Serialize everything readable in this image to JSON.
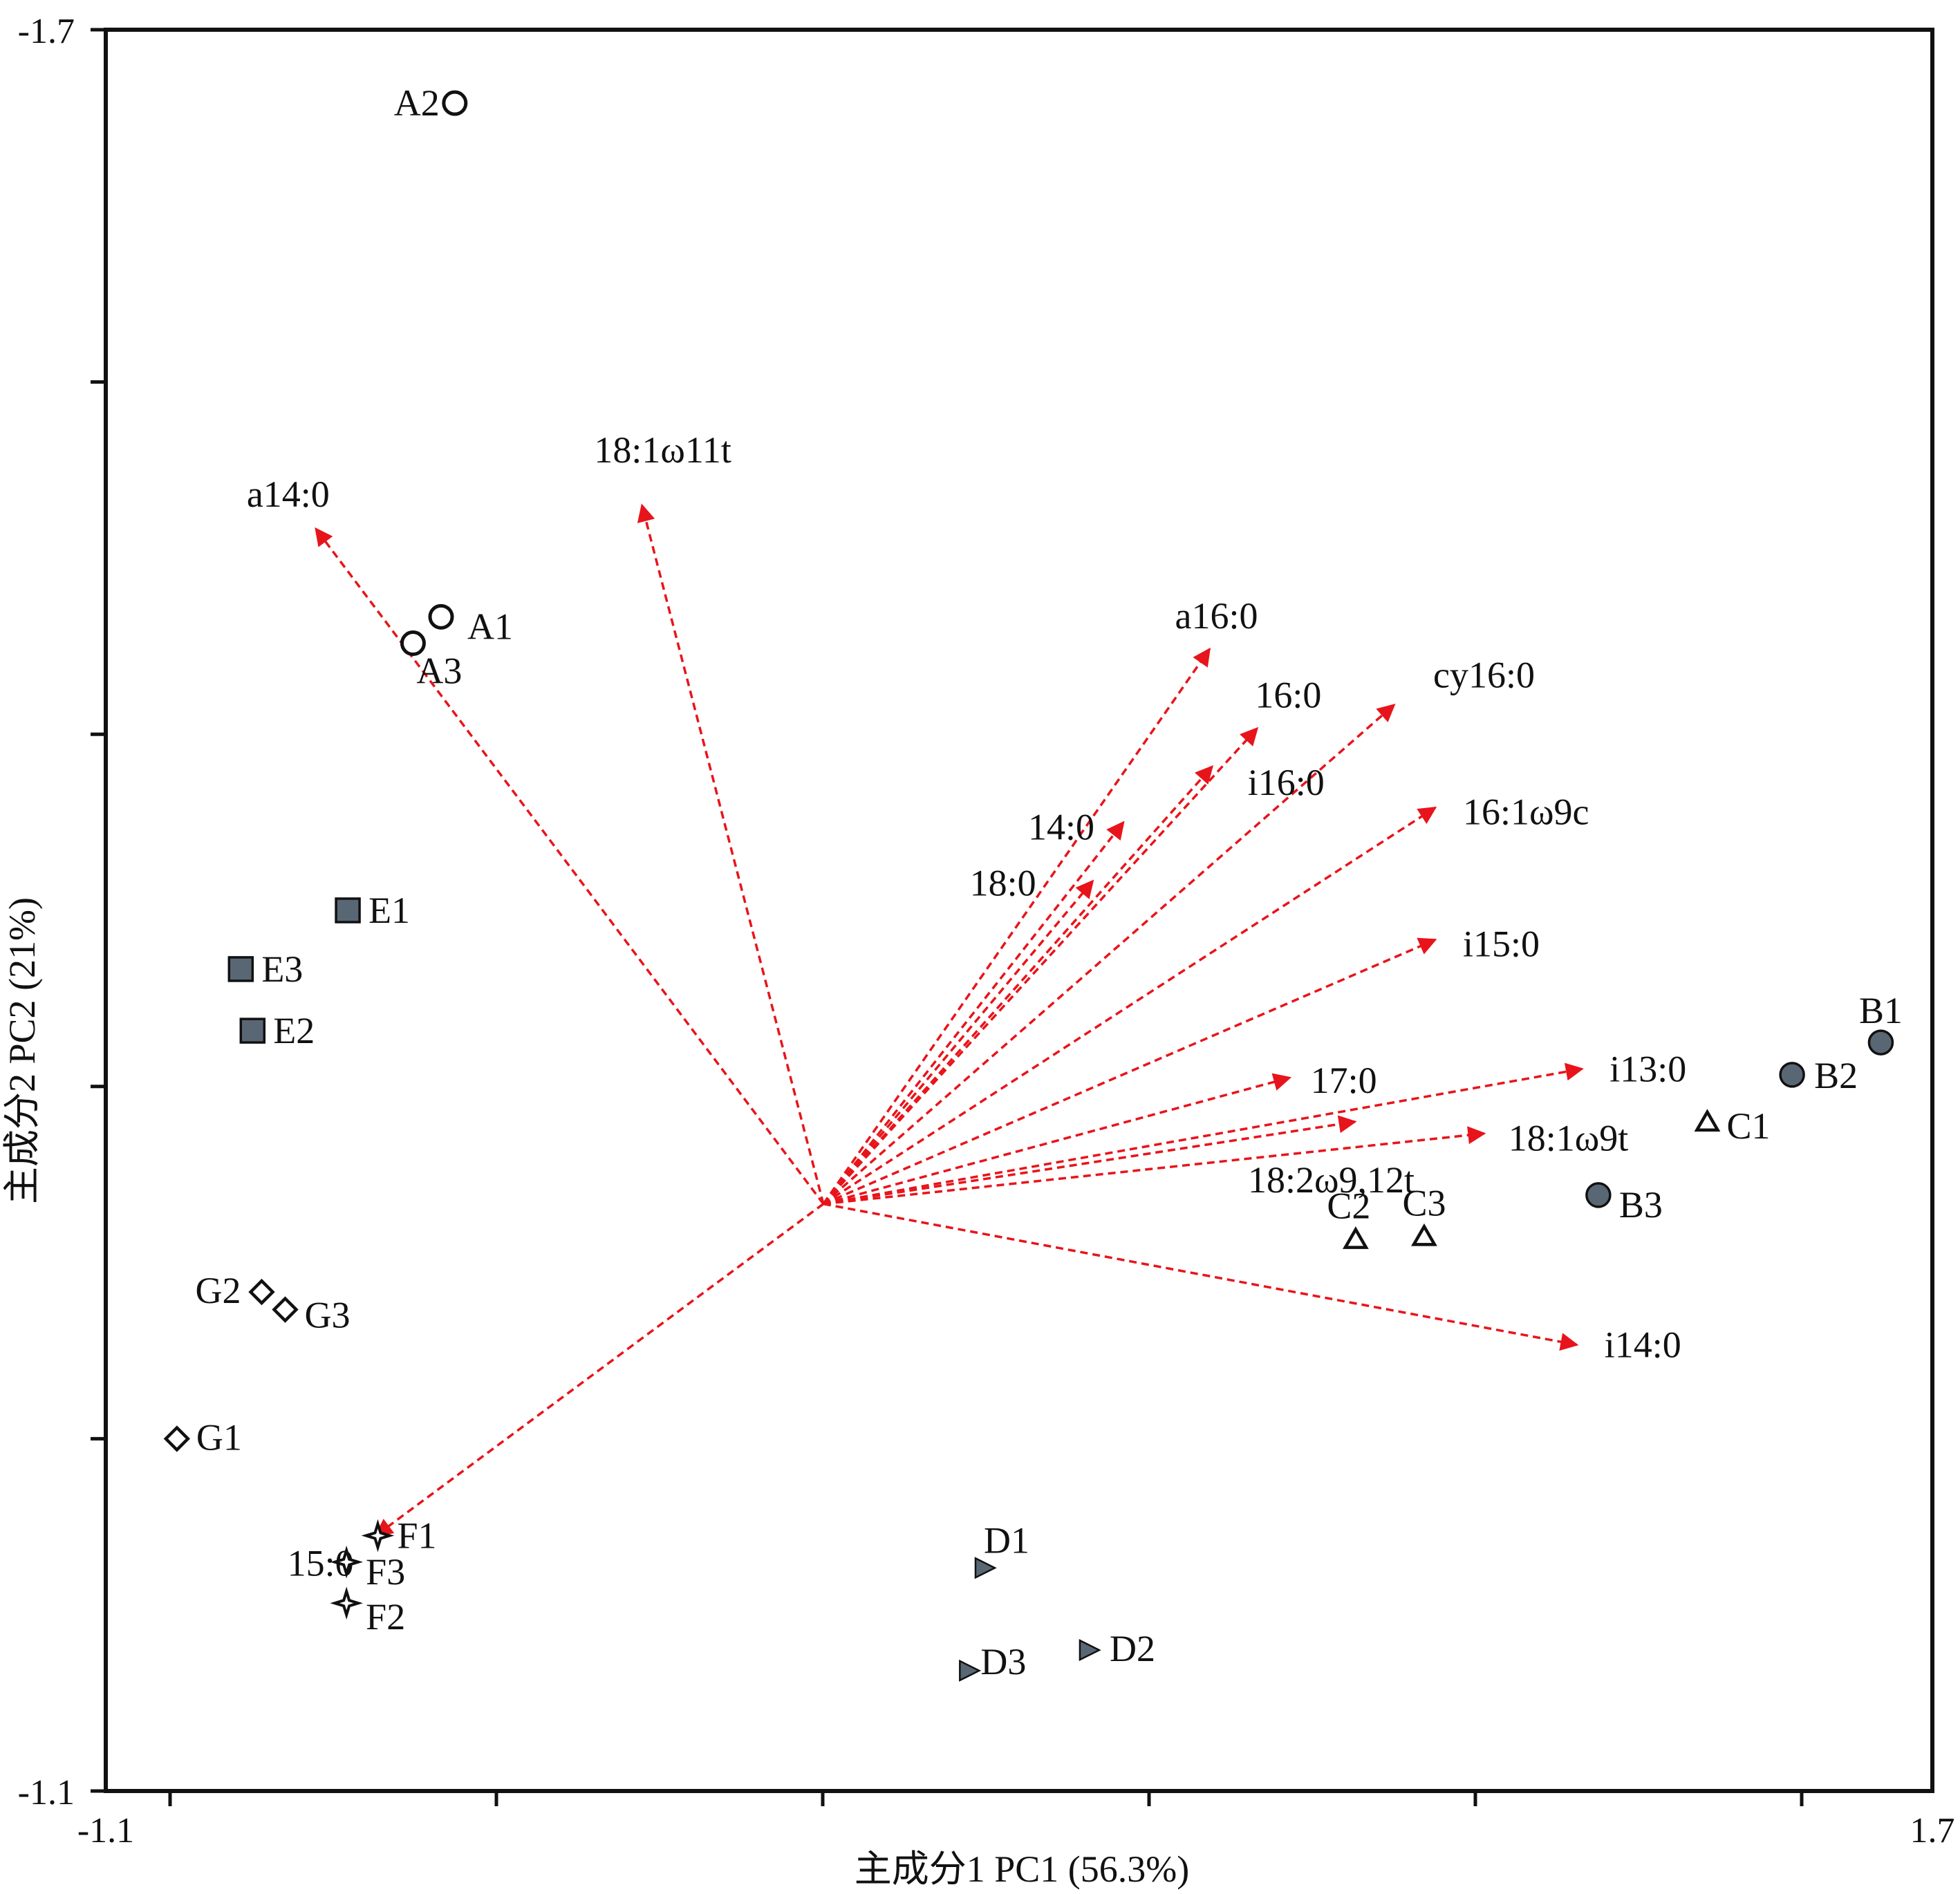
{
  "chart_data": {
    "type": "scatter",
    "subtype": "pca-biplot",
    "xlabel": "主成分1 PC1 (56.3%)",
    "ylabel": "主成分2 PC2 (21%)",
    "xlim": [
      -1.1,
      1.7
    ],
    "ylim": [
      -1.7,
      -1.1
    ],
    "x_tick_labels": [
      "-1.1",
      "1.7"
    ],
    "y_tick_labels": [
      "-1.7",
      "-1.1"
    ],
    "x_tick_count": 11,
    "y_tick_count": 6,
    "colors": {
      "arrow": "#e8141b",
      "filled_marker": "#596775",
      "outline": "#111111",
      "frame": "#111111"
    },
    "samples": [
      {
        "name": "A1",
        "group": "A",
        "marker": "circle-open",
        "x": -0.586,
        "y": -1.5
      },
      {
        "name": "A2",
        "group": "A",
        "marker": "circle-open",
        "x": -0.565,
        "y": -1.675
      },
      {
        "name": "A3",
        "group": "A",
        "marker": "circle-open",
        "x": -0.629,
        "y": -1.491
      },
      {
        "name": "B1",
        "group": "B",
        "marker": "circle-filled",
        "x": 1.621,
        "y": -1.355
      },
      {
        "name": "B2",
        "group": "B",
        "marker": "circle-filled",
        "x": 1.485,
        "y": -1.344
      },
      {
        "name": "B3",
        "group": "B",
        "marker": "circle-filled",
        "x": 1.188,
        "y": -1.303
      },
      {
        "name": "C1",
        "group": "C",
        "marker": "triangle-open",
        "x": 1.355,
        "y": -1.328
      },
      {
        "name": "C2",
        "group": "C",
        "marker": "triangle-open",
        "x": 0.816,
        "y": -1.288
      },
      {
        "name": "C3",
        "group": "C",
        "marker": "triangle-open",
        "x": 0.921,
        "y": -1.289
      },
      {
        "name": "D1",
        "group": "D",
        "marker": "triangle-right-filled",
        "x": 0.247,
        "y": -1.176
      },
      {
        "name": "D2",
        "group": "D",
        "marker": "triangle-right-filled",
        "x": 0.407,
        "y": -1.148
      },
      {
        "name": "D3",
        "group": "D",
        "marker": "triangle-right-filled",
        "x": 0.223,
        "y": -1.141
      },
      {
        "name": "E1",
        "group": "E",
        "marker": "square-filled",
        "x": -0.729,
        "y": -1.4
      },
      {
        "name": "E2",
        "group": "E",
        "marker": "square-filled",
        "x": -0.875,
        "y": -1.359
      },
      {
        "name": "E3",
        "group": "E",
        "marker": "square-filled",
        "x": -0.893,
        "y": -1.38
      },
      {
        "name": "F1",
        "group": "F",
        "marker": "star4-open",
        "x": -0.683,
        "y": -1.187
      },
      {
        "name": "F2",
        "group": "F",
        "marker": "star4-open",
        "x": -0.731,
        "y": -1.164
      },
      {
        "name": "F3",
        "group": "F",
        "marker": "star4-open",
        "x": -0.731,
        "y": -1.178
      },
      {
        "name": "G1",
        "group": "G",
        "marker": "diamond-open",
        "x": -0.991,
        "y": -1.22
      },
      {
        "name": "G2",
        "group": "G",
        "marker": "diamond-open",
        "x": -0.861,
        "y": -1.27
      },
      {
        "name": "G3",
        "group": "G",
        "marker": "diamond-open",
        "x": -0.825,
        "y": -1.264
      }
    ],
    "origin": {
      "x": 0.0,
      "y": -1.3
    },
    "loadings": [
      {
        "name": "a14:0",
        "x": -0.778,
        "y": -1.53
      },
      {
        "name": "18:1ω11t",
        "x": -0.278,
        "y": -1.538
      },
      {
        "name": "a16:0",
        "x": 0.592,
        "y": -1.489
      },
      {
        "name": "16:0",
        "x": 0.665,
        "y": -1.462
      },
      {
        "name": "cy16:0",
        "x": 0.875,
        "y": -1.47
      },
      {
        "name": "i16:0",
        "x": 0.596,
        "y": -1.449
      },
      {
        "name": "14:0",
        "x": 0.46,
        "y": -1.43
      },
      {
        "name": "18:0",
        "x": 0.413,
        "y": -1.41
      },
      {
        "name": "16:1ω9c",
        "x": 0.938,
        "y": -1.435
      },
      {
        "name": "i15:0",
        "x": 0.938,
        "y": -1.39
      },
      {
        "name": "17:0",
        "x": 0.715,
        "y": -1.343
      },
      {
        "name": "i13:0",
        "x": 1.163,
        "y": -1.346
      },
      {
        "name": "18:1ω9t",
        "x": 1.013,
        "y": -1.324
      },
      {
        "name": "18:2ω9,12t",
        "x": 0.815,
        "y": -1.328
      },
      {
        "name": "i14:0",
        "x": 1.155,
        "y": -1.252
      },
      {
        "name": "15:0",
        "x": -0.686,
        "y": -1.187
      }
    ]
  }
}
